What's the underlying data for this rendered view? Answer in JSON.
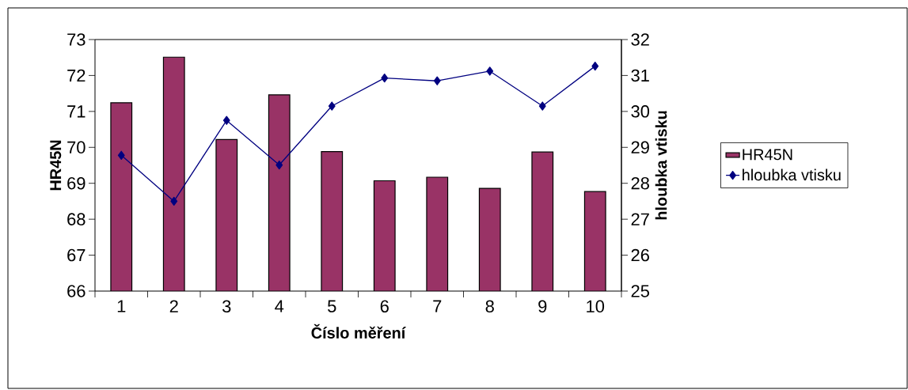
{
  "chart_data": {
    "type": "bar",
    "xlabel": "Číslo měření",
    "ylabel": "HR45N",
    "y2label": "hloubka vtisku",
    "categories": [
      "1",
      "2",
      "3",
      "4",
      "5",
      "6",
      "7",
      "8",
      "9",
      "10"
    ],
    "ylim": [
      66,
      73
    ],
    "yticks": [
      66,
      67,
      68,
      69,
      70,
      71,
      72,
      73
    ],
    "y2lim": [
      25,
      32
    ],
    "y2ticks": [
      25,
      26,
      27,
      28,
      29,
      30,
      31,
      32
    ],
    "legend": "right",
    "series": [
      {
        "name": "HR45N",
        "color": "#993366",
        "values": [
          71.24,
          72.51,
          70.22,
          71.46,
          69.88,
          69.07,
          69.17,
          68.86,
          69.87,
          68.77
        ]
      },
      {
        "name": "hloubka vtisku",
        "type": "line",
        "axis": "y2",
        "color": "#000080",
        "marker": "diamond",
        "values": [
          28.78,
          27.5,
          29.75,
          28.51,
          30.15,
          30.93,
          30.85,
          31.12,
          30.15,
          31.26
        ]
      }
    ]
  }
}
